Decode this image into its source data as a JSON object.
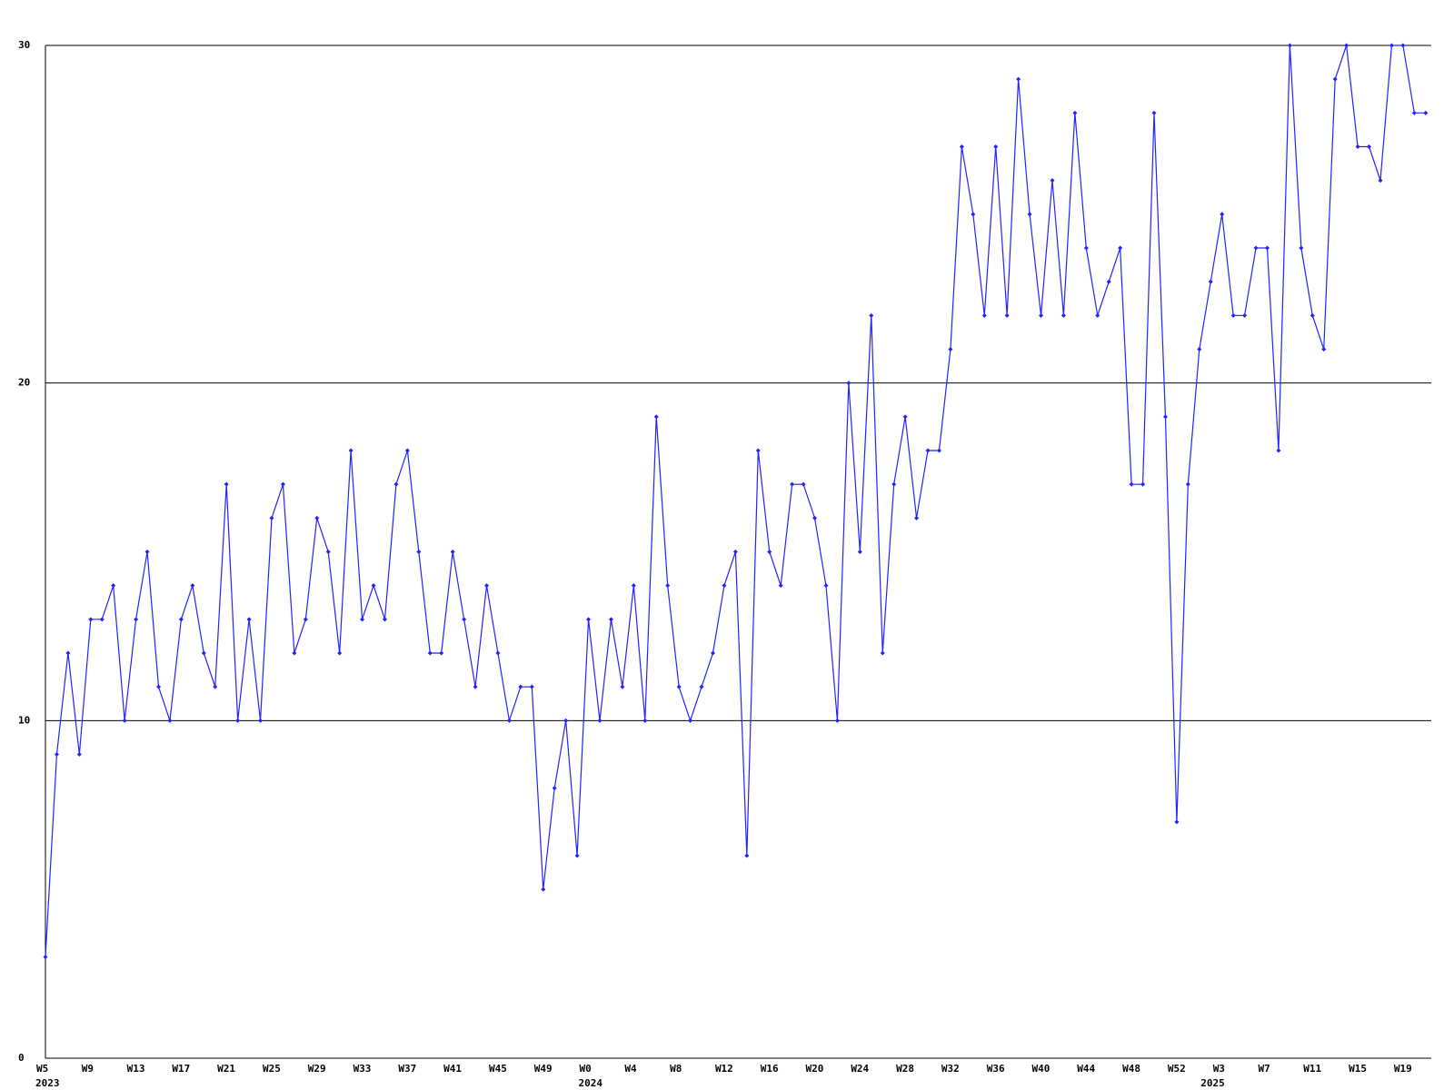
{
  "chart_data": {
    "type": "line",
    "categories": [
      "W5",
      null,
      null,
      null,
      "W9",
      null,
      null,
      null,
      "W13",
      null,
      null,
      null,
      "W17",
      null,
      null,
      null,
      "W21",
      null,
      null,
      null,
      "W25",
      null,
      null,
      null,
      "W29",
      null,
      null,
      null,
      "W33",
      null,
      null,
      null,
      "W37",
      null,
      null,
      null,
      "W41",
      null,
      null,
      null,
      "W45",
      null,
      null,
      null,
      "W49",
      null,
      null,
      null,
      "W0",
      null,
      null,
      null,
      "W4",
      null,
      null,
      null,
      "W8",
      null,
      null,
      null,
      "W12",
      null,
      null,
      null,
      "W16",
      null,
      null,
      null,
      "W20",
      null,
      null,
      null,
      "W24",
      null,
      null,
      null,
      "W28",
      null,
      null,
      null,
      "W32",
      null,
      null,
      null,
      "W36",
      null,
      null,
      null,
      "W40",
      null,
      null,
      null,
      "W44",
      null,
      null,
      null,
      "W48",
      null,
      null,
      null,
      "W52",
      null,
      null,
      null,
      "W3",
      null,
      null,
      null,
      "W7",
      null,
      null,
      null,
      "W11",
      null,
      null,
      null,
      "W15",
      null,
      null,
      null,
      "W19",
      null,
      null
    ],
    "years": [
      "2023",
      null,
      null,
      null,
      null,
      null,
      null,
      null,
      null,
      null,
      null,
      null,
      null,
      null,
      null,
      null,
      null,
      null,
      null,
      null,
      null,
      null,
      null,
      null,
      null,
      null,
      null,
      null,
      null,
      null,
      null,
      null,
      null,
      null,
      null,
      null,
      null,
      null,
      null,
      null,
      null,
      null,
      null,
      null,
      null,
      null,
      null,
      null,
      "2024",
      null,
      null,
      null,
      null,
      null,
      null,
      null,
      null,
      null,
      null,
      null,
      null,
      null,
      null,
      null,
      null,
      null,
      null,
      null,
      null,
      null,
      null,
      null,
      null,
      null,
      null,
      null,
      null,
      null,
      null,
      null,
      null,
      null,
      null,
      null,
      null,
      null,
      null,
      null,
      null,
      null,
      null,
      null,
      null,
      null,
      null,
      null,
      null,
      null,
      null,
      null,
      null,
      null,
      null,
      "2025",
      null,
      null,
      null,
      null,
      null,
      null,
      null,
      null,
      null,
      null,
      null,
      null,
      null,
      null,
      null,
      null,
      null,
      null,
      null,
      null,
      null
    ],
    "values": [
      3,
      9,
      12,
      9,
      13,
      13,
      14,
      10,
      13,
      15,
      11,
      10,
      13,
      14,
      12,
      11,
      17,
      10,
      13,
      10,
      16,
      17,
      12,
      13,
      16,
      15,
      12,
      18,
      13,
      14,
      13,
      17,
      18,
      15,
      12,
      12,
      15,
      13,
      11,
      14,
      12,
      10,
      11,
      11,
      5,
      8,
      10,
      6,
      13,
      10,
      13,
      11,
      14,
      10,
      19,
      14,
      11,
      10,
      11,
      12,
      14,
      15,
      6,
      18,
      15,
      14,
      17,
      17,
      16,
      14,
      10,
      20,
      15,
      22,
      12,
      17,
      19,
      16,
      18,
      18,
      21,
      27,
      25,
      22,
      27,
      22,
      29,
      25,
      22,
      26,
      22,
      28,
      24,
      22,
      23,
      24,
      17,
      17,
      28,
      19,
      7,
      17,
      21,
      23,
      25,
      22,
      22,
      24,
      24,
      18,
      30,
      24,
      22,
      21,
      29,
      30,
      27,
      27,
      26,
      30,
      30,
      28,
      28
    ],
    "color": "#2222ff",
    "ylim": [
      0,
      30
    ],
    "yticks": [
      0,
      10,
      20,
      30
    ],
    "grid": true
  }
}
